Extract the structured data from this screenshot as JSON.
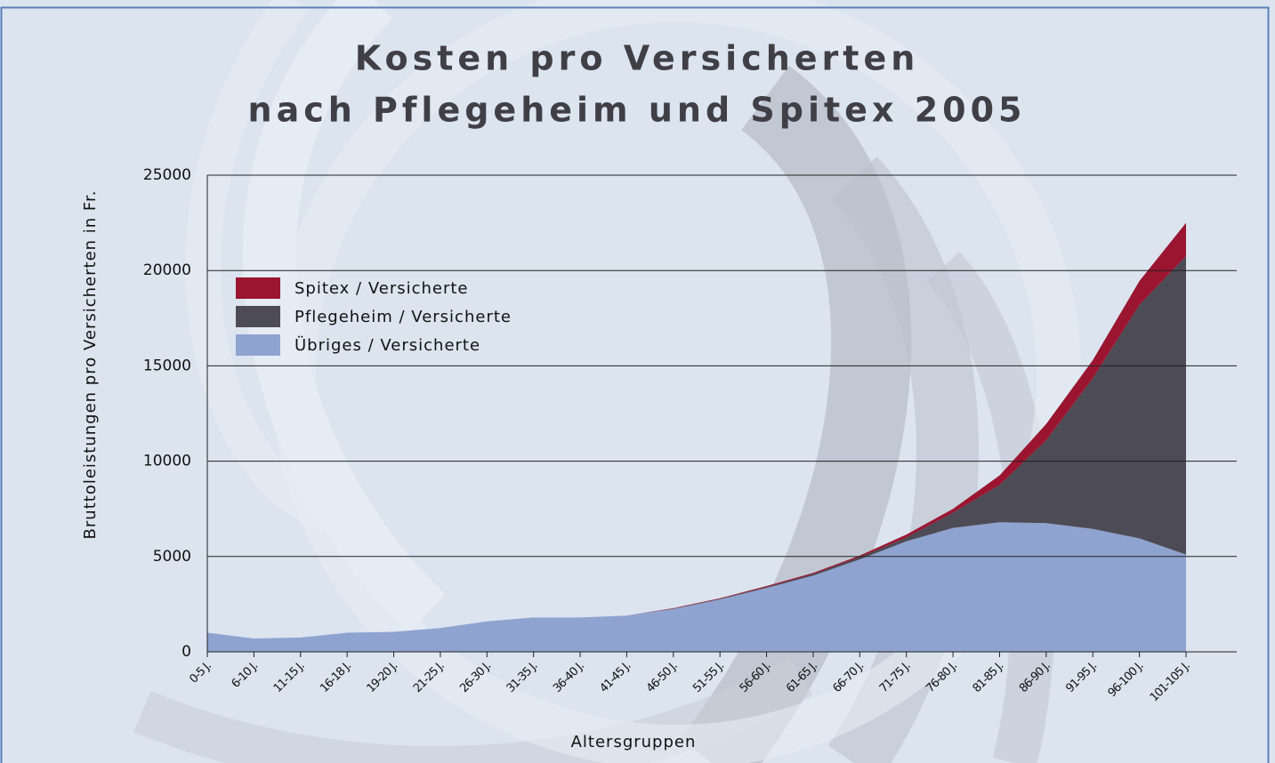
{
  "chart_data": {
    "type": "stacked-area",
    "title": [
      "Kosten pro Versicherten",
      "nach Pflegeheim und Spitex 2005"
    ],
    "y_label": "Bruttoleistungen pro Versicherten in Fr.",
    "x_label": "Altersgruppen",
    "categories": [
      "0-5 J.",
      "6-10 J.",
      "11-15 J.",
      "16-18 J.",
      "19-20 J.",
      "21-25 J.",
      "26-30 J.",
      "31-35 J.",
      "36-40 J.",
      "41-45 J.",
      "46-50 J.",
      "51-55 J.",
      "56-60 J.",
      "61-65 J.",
      "66-70 J.",
      "71-75 J.",
      "76-80 J.",
      "81-85 J.",
      "86-90 J.",
      "91-95 J.",
      "96-100 J.",
      "101-105 J."
    ],
    "series": [
      {
        "name": "Übriges / Versicherte",
        "color": "#8fa3d0",
        "values": [
          1000,
          700,
          750,
          1000,
          1050,
          1250,
          1600,
          1800,
          1800,
          1900,
          2250,
          2750,
          3350,
          4000,
          4850,
          5800,
          6500,
          6800,
          6750,
          6450,
          5950,
          5100
        ]
      },
      {
        "name": "Pflegeheim / Versicherte",
        "color": "#4d4b55",
        "values": [
          0,
          0,
          0,
          0,
          0,
          0,
          0,
          0,
          0,
          0,
          20,
          30,
          50,
          80,
          120,
          200,
          800,
          1950,
          4350,
          7900,
          12250,
          15650
        ]
      },
      {
        "name": "Spitex / Versicherte",
        "color": "#9b1530",
        "values": [
          0,
          0,
          0,
          0,
          0,
          0,
          0,
          0,
          0,
          0,
          20,
          30,
          50,
          60,
          80,
          150,
          200,
          500,
          850,
          950,
          1250,
          1750
        ]
      }
    ],
    "ylim": [
      0,
      25000
    ],
    "yticks": [
      0,
      5000,
      10000,
      15000,
      20000,
      25000
    ],
    "grid": true
  }
}
